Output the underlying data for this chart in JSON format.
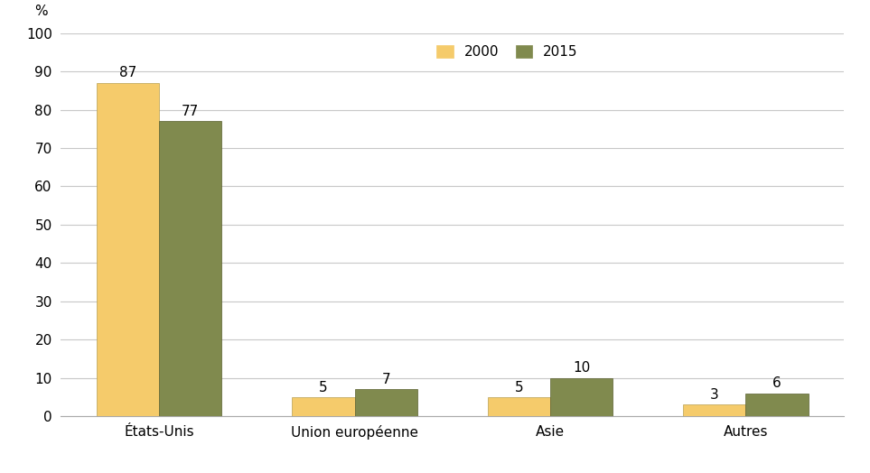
{
  "categories": [
    "États-Unis",
    "Union européenne",
    "Asie",
    "Autres"
  ],
  "values_2000": [
    87,
    5,
    5,
    3
  ],
  "values_2015": [
    77,
    7,
    10,
    6
  ],
  "color_2000": "#f5cb6b",
  "color_2015": "#808a4e",
  "legend_labels": [
    "2000",
    "2015"
  ],
  "ylabel": "%",
  "ylim": [
    0,
    100
  ],
  "yticks": [
    0,
    10,
    20,
    30,
    40,
    50,
    60,
    70,
    80,
    90,
    100
  ],
  "bar_width": 0.32,
  "background_color": "#ffffff",
  "grid_color": "#c8c8c8",
  "label_fontsize": 11,
  "tick_fontsize": 11,
  "legend_fontsize": 11,
  "bar_label_fontsize": 11
}
